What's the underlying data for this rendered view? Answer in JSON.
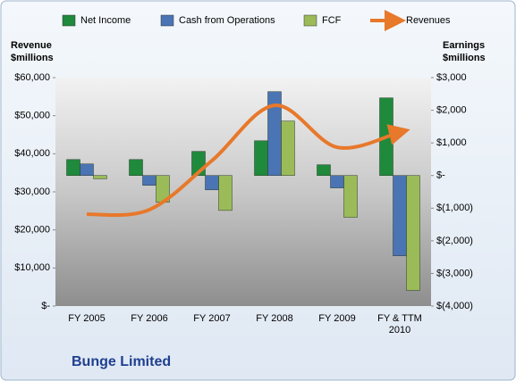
{
  "chart_data": {
    "type": "combo",
    "title": "Bunge Limited",
    "y_label": "Revenue $millions",
    "y2_label": "Earnings $millions",
    "categories": [
      "FY 2005",
      "FY 2006",
      "FY 2007",
      "FY 2008",
      "FY 2009",
      "FY & TTM 2010"
    ],
    "ylim": [
      0,
      60000
    ],
    "yticks": [
      {
        "value": 0,
        "label": "$-"
      },
      {
        "value": 10000,
        "label": "$10,000"
      },
      {
        "value": 20000,
        "label": "$20,000"
      },
      {
        "value": 30000,
        "label": "$30,000"
      },
      {
        "value": 40000,
        "label": "$40,000"
      },
      {
        "value": 50000,
        "label": "$50,000"
      },
      {
        "value": 60000,
        "label": "$60,000"
      }
    ],
    "y2lim": [
      -4000,
      3000
    ],
    "y2ticks": [
      {
        "value": -4000,
        "label": "$(4,000)"
      },
      {
        "value": -3000,
        "label": "$(3,000)"
      },
      {
        "value": -2000,
        "label": "$(2,000)"
      },
      {
        "value": -1000,
        "label": "$(1,000)"
      },
      {
        "value": 0,
        "label": "$-"
      },
      {
        "value": 1000,
        "label": "$1,000"
      },
      {
        "value": 2000,
        "label": "$2,000"
      },
      {
        "value": 3000,
        "label": "$3,000"
      }
    ],
    "series": [
      {
        "name": "Net Income",
        "type": "bar",
        "axis": "y2",
        "color": "#1f8a3c",
        "values": [
          490,
          490,
          740,
          1065,
          330,
          2380
        ]
      },
      {
        "name": "Cash from Operations",
        "type": "bar",
        "axis": "y2",
        "color": "#4a74b4",
        "values": [
          355,
          -300,
          -440,
          2570,
          -380,
          -2460
        ]
      },
      {
        "name": "FCF",
        "type": "bar",
        "axis": "y2",
        "color": "#9bbb59",
        "values": [
          -100,
          -820,
          -1070,
          1670,
          -1280,
          -3520
        ]
      },
      {
        "name": "Revenues",
        "type": "line",
        "axis": "y",
        "color": "#e8782a",
        "values": [
          24100,
          25300,
          38200,
          52700,
          41700,
          45700
        ]
      }
    ]
  }
}
